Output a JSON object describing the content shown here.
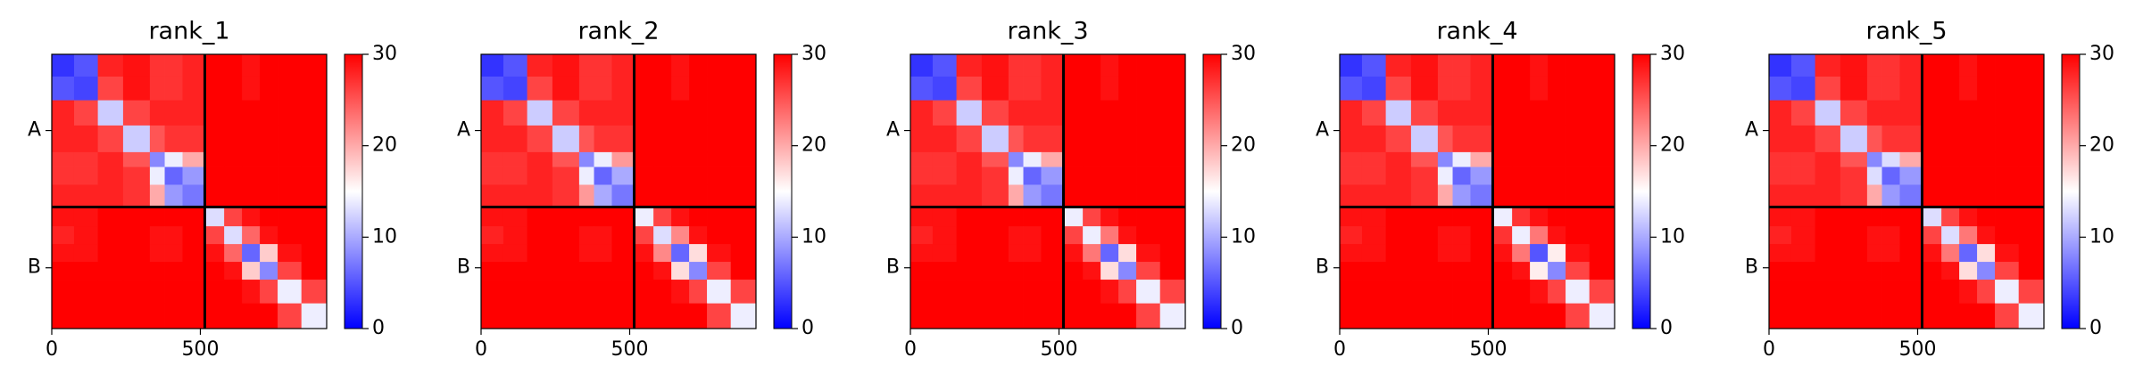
{
  "chart_data": [
    {
      "type": "heatmap",
      "title": "rank_1",
      "cmap": "bwr",
      "clim": [
        0,
        30
      ],
      "cbar_ticks": [
        0,
        10,
        20,
        30
      ],
      "bins": [
        0,
        75,
        155,
        240,
        330,
        380,
        440,
        515,
        580,
        640,
        700,
        760,
        840,
        925
      ],
      "xlim": [
        0,
        925
      ],
      "ylim": [
        925,
        0
      ],
      "xticks": [
        0,
        500
      ],
      "yticks": [
        {
          "value": 257,
          "label": "A"
        },
        {
          "value": 720,
          "label": "B"
        }
      ],
      "boundaries": [
        515
      ],
      "matrix": [
        [
          3,
          5,
          28,
          29,
          27,
          27,
          28,
          30,
          30,
          29,
          30,
          30,
          30
        ],
        [
          5,
          4,
          26,
          29,
          27,
          27,
          28,
          30,
          30,
          29,
          30,
          30,
          30
        ],
        [
          28,
          26,
          12,
          26,
          28,
          28,
          28,
          30,
          30,
          30,
          30,
          30,
          30
        ],
        [
          28,
          28,
          26,
          12,
          25,
          27,
          27,
          30,
          30,
          30,
          30,
          30,
          30
        ],
        [
          27,
          27,
          28,
          25,
          8,
          14,
          20,
          30,
          30,
          30,
          30,
          30,
          30
        ],
        [
          27,
          27,
          28,
          27,
          14,
          6,
          9,
          30,
          30,
          30,
          30,
          30,
          30
        ],
        [
          28,
          28,
          28,
          27,
          20,
          9,
          7,
          30,
          30,
          30,
          30,
          30,
          30
        ],
        [
          29,
          29,
          30,
          30,
          30,
          30,
          30,
          13,
          26,
          29,
          30,
          30,
          30
        ],
        [
          28,
          29,
          30,
          30,
          29,
          29,
          30,
          26,
          13,
          24,
          29,
          30,
          30
        ],
        [
          29,
          29,
          30,
          30,
          29,
          29,
          30,
          29,
          24,
          6,
          18,
          29,
          30
        ],
        [
          30,
          30,
          30,
          30,
          30,
          30,
          30,
          30,
          29,
          18,
          8,
          26,
          30
        ],
        [
          30,
          30,
          30,
          30,
          30,
          30,
          30,
          30,
          30,
          29,
          26,
          14,
          26
        ],
        [
          30,
          30,
          30,
          30,
          30,
          30,
          30,
          30,
          30,
          30,
          30,
          26,
          14
        ]
      ]
    },
    {
      "type": "heatmap",
      "title": "rank_2",
      "cmap": "bwr",
      "clim": [
        0,
        30
      ],
      "cbar_ticks": [
        0,
        10,
        20,
        30
      ],
      "bins": [
        0,
        75,
        155,
        240,
        330,
        380,
        440,
        515,
        580,
        640,
        700,
        760,
        840,
        925
      ],
      "xlim": [
        0,
        925
      ],
      "ylim": [
        925,
        0
      ],
      "xticks": [
        0,
        500
      ],
      "yticks": [
        {
          "value": 257,
          "label": "A"
        },
        {
          "value": 720,
          "label": "B"
        }
      ],
      "boundaries": [
        515
      ],
      "matrix": [
        [
          3,
          5,
          28,
          29,
          27,
          27,
          28,
          30,
          30,
          29,
          30,
          30,
          30
        ],
        [
          5,
          4,
          26,
          29,
          27,
          27,
          28,
          30,
          30,
          29,
          30,
          30,
          30
        ],
        [
          28,
          26,
          12,
          26,
          28,
          28,
          28,
          30,
          30,
          30,
          30,
          30,
          30
        ],
        [
          28,
          28,
          26,
          12,
          25,
          27,
          27,
          30,
          30,
          30,
          30,
          30,
          30
        ],
        [
          27,
          27,
          28,
          25,
          8,
          14,
          21,
          30,
          30,
          30,
          30,
          30,
          30
        ],
        [
          27,
          27,
          28,
          27,
          14,
          6,
          10,
          30,
          30,
          30,
          30,
          30,
          30
        ],
        [
          28,
          28,
          28,
          27,
          21,
          10,
          7,
          30,
          30,
          30,
          30,
          30,
          30
        ],
        [
          29,
          29,
          30,
          30,
          30,
          30,
          30,
          14,
          26,
          29,
          30,
          30,
          30
        ],
        [
          28,
          29,
          30,
          30,
          29,
          29,
          30,
          26,
          13,
          22,
          29,
          30,
          30
        ],
        [
          29,
          29,
          30,
          30,
          29,
          29,
          30,
          29,
          22,
          6,
          17,
          29,
          30
        ],
        [
          30,
          30,
          30,
          30,
          30,
          30,
          30,
          30,
          29,
          17,
          8,
          26,
          30
        ],
        [
          30,
          30,
          30,
          30,
          30,
          30,
          30,
          30,
          30,
          29,
          26,
          14,
          26
        ],
        [
          30,
          30,
          30,
          30,
          30,
          30,
          30,
          30,
          30,
          30,
          30,
          26,
          14
        ]
      ]
    },
    {
      "type": "heatmap",
      "title": "rank_3",
      "cmap": "bwr",
      "clim": [
        0,
        30
      ],
      "cbar_ticks": [
        0,
        10,
        20,
        30
      ],
      "bins": [
        0,
        75,
        155,
        240,
        330,
        380,
        440,
        515,
        580,
        640,
        700,
        760,
        840,
        925
      ],
      "xlim": [
        0,
        925
      ],
      "ylim": [
        925,
        0
      ],
      "xticks": [
        0,
        500
      ],
      "yticks": [
        {
          "value": 257,
          "label": "A"
        },
        {
          "value": 720,
          "label": "B"
        }
      ],
      "boundaries": [
        515
      ],
      "matrix": [
        [
          3,
          5,
          28,
          29,
          27,
          27,
          28,
          30,
          30,
          29,
          30,
          30,
          30
        ],
        [
          5,
          4,
          26,
          29,
          27,
          27,
          28,
          30,
          30,
          29,
          30,
          30,
          30
        ],
        [
          28,
          26,
          12,
          26,
          28,
          28,
          28,
          30,
          30,
          30,
          30,
          30,
          30
        ],
        [
          28,
          28,
          26,
          12,
          25,
          27,
          27,
          30,
          30,
          30,
          30,
          30,
          30
        ],
        [
          27,
          27,
          28,
          25,
          8,
          14,
          20,
          30,
          30,
          30,
          30,
          30,
          30
        ],
        [
          27,
          27,
          28,
          27,
          14,
          6,
          9,
          30,
          30,
          30,
          30,
          30,
          30
        ],
        [
          28,
          28,
          28,
          27,
          20,
          9,
          7,
          30,
          30,
          30,
          30,
          30,
          30
        ],
        [
          29,
          29,
          30,
          30,
          30,
          30,
          30,
          14,
          26,
          29,
          30,
          30,
          30
        ],
        [
          28,
          29,
          30,
          30,
          29,
          29,
          30,
          26,
          14,
          23,
          29,
          30,
          30
        ],
        [
          29,
          29,
          30,
          30,
          29,
          29,
          30,
          29,
          23,
          6,
          17,
          29,
          30
        ],
        [
          30,
          30,
          30,
          30,
          30,
          30,
          30,
          30,
          29,
          17,
          8,
          26,
          30
        ],
        [
          30,
          30,
          30,
          30,
          30,
          30,
          30,
          30,
          30,
          29,
          26,
          14,
          26
        ],
        [
          30,
          30,
          30,
          30,
          30,
          30,
          30,
          30,
          30,
          30,
          30,
          26,
          14
        ]
      ]
    },
    {
      "type": "heatmap",
      "title": "rank_4",
      "cmap": "bwr",
      "clim": [
        0,
        30
      ],
      "cbar_ticks": [
        0,
        10,
        20,
        30
      ],
      "bins": [
        0,
        75,
        155,
        240,
        330,
        380,
        440,
        515,
        580,
        640,
        700,
        760,
        840,
        925
      ],
      "xlim": [
        0,
        925
      ],
      "ylim": [
        925,
        0
      ],
      "xticks": [
        0,
        500
      ],
      "yticks": [
        {
          "value": 257,
          "label": "A"
        },
        {
          "value": 720,
          "label": "B"
        }
      ],
      "boundaries": [
        515
      ],
      "matrix": [
        [
          3,
          5,
          28,
          29,
          27,
          27,
          28,
          30,
          30,
          29,
          30,
          30,
          30
        ],
        [
          5,
          4,
          26,
          29,
          27,
          27,
          28,
          30,
          30,
          29,
          30,
          30,
          30
        ],
        [
          28,
          26,
          12,
          26,
          28,
          28,
          28,
          30,
          30,
          30,
          30,
          30,
          30
        ],
        [
          28,
          28,
          26,
          12,
          25,
          27,
          27,
          30,
          30,
          30,
          30,
          30,
          30
        ],
        [
          27,
          27,
          28,
          25,
          8,
          14,
          20,
          30,
          30,
          30,
          30,
          30,
          30
        ],
        [
          27,
          27,
          28,
          27,
          14,
          6,
          9,
          30,
          30,
          30,
          30,
          30,
          30
        ],
        [
          28,
          28,
          28,
          27,
          20,
          9,
          7,
          30,
          30,
          30,
          30,
          30,
          30
        ],
        [
          29,
          29,
          30,
          30,
          30,
          30,
          30,
          14,
          27,
          29,
          30,
          30,
          30
        ],
        [
          28,
          29,
          30,
          30,
          29,
          29,
          30,
          27,
          14,
          23,
          29,
          30,
          30
        ],
        [
          29,
          29,
          30,
          30,
          29,
          29,
          30,
          29,
          23,
          5,
          16,
          29,
          30
        ],
        [
          30,
          30,
          30,
          30,
          30,
          30,
          30,
          30,
          29,
          16,
          8,
          26,
          30
        ],
        [
          30,
          30,
          30,
          30,
          30,
          30,
          30,
          30,
          30,
          29,
          26,
          14,
          26
        ],
        [
          30,
          30,
          30,
          30,
          30,
          30,
          30,
          30,
          30,
          30,
          30,
          26,
          14
        ]
      ]
    },
    {
      "type": "heatmap",
      "title": "rank_5",
      "cmap": "bwr",
      "clim": [
        0,
        30
      ],
      "cbar_ticks": [
        0,
        10,
        20,
        30
      ],
      "bins": [
        0,
        75,
        155,
        240,
        330,
        380,
        440,
        515,
        580,
        640,
        700,
        760,
        840,
        925
      ],
      "xlim": [
        0,
        925
      ],
      "ylim": [
        925,
        0
      ],
      "xticks": [
        0,
        500
      ],
      "yticks": [
        {
          "value": 257,
          "label": "A"
        },
        {
          "value": 720,
          "label": "B"
        }
      ],
      "boundaries": [
        515
      ],
      "matrix": [
        [
          3,
          5,
          28,
          29,
          27,
          27,
          28,
          30,
          30,
          29,
          30,
          30,
          30
        ],
        [
          5,
          4,
          26,
          29,
          27,
          27,
          28,
          30,
          30,
          29,
          30,
          30,
          30
        ],
        [
          28,
          26,
          12,
          26,
          28,
          28,
          28,
          30,
          30,
          30,
          30,
          30,
          30
        ],
        [
          28,
          28,
          26,
          12,
          25,
          27,
          27,
          30,
          30,
          30,
          30,
          30,
          30
        ],
        [
          27,
          27,
          28,
          25,
          8,
          13,
          20,
          30,
          30,
          30,
          30,
          30,
          30
        ],
        [
          27,
          27,
          28,
          27,
          13,
          6,
          9,
          30,
          30,
          30,
          30,
          30,
          30
        ],
        [
          28,
          28,
          28,
          27,
          20,
          9,
          7,
          30,
          30,
          30,
          30,
          30,
          30
        ],
        [
          29,
          29,
          30,
          30,
          30,
          30,
          30,
          13,
          26,
          29,
          30,
          30,
          30
        ],
        [
          28,
          29,
          30,
          30,
          29,
          29,
          30,
          26,
          13,
          23,
          29,
          30,
          30
        ],
        [
          29,
          29,
          30,
          30,
          29,
          29,
          30,
          29,
          23,
          6,
          17,
          29,
          30
        ],
        [
          30,
          30,
          30,
          30,
          30,
          30,
          30,
          30,
          29,
          17,
          8,
          26,
          30
        ],
        [
          30,
          30,
          30,
          30,
          30,
          30,
          30,
          30,
          30,
          29,
          26,
          14,
          26
        ],
        [
          30,
          30,
          30,
          30,
          30,
          30,
          30,
          30,
          30,
          30,
          30,
          26,
          14
        ]
      ]
    }
  ]
}
